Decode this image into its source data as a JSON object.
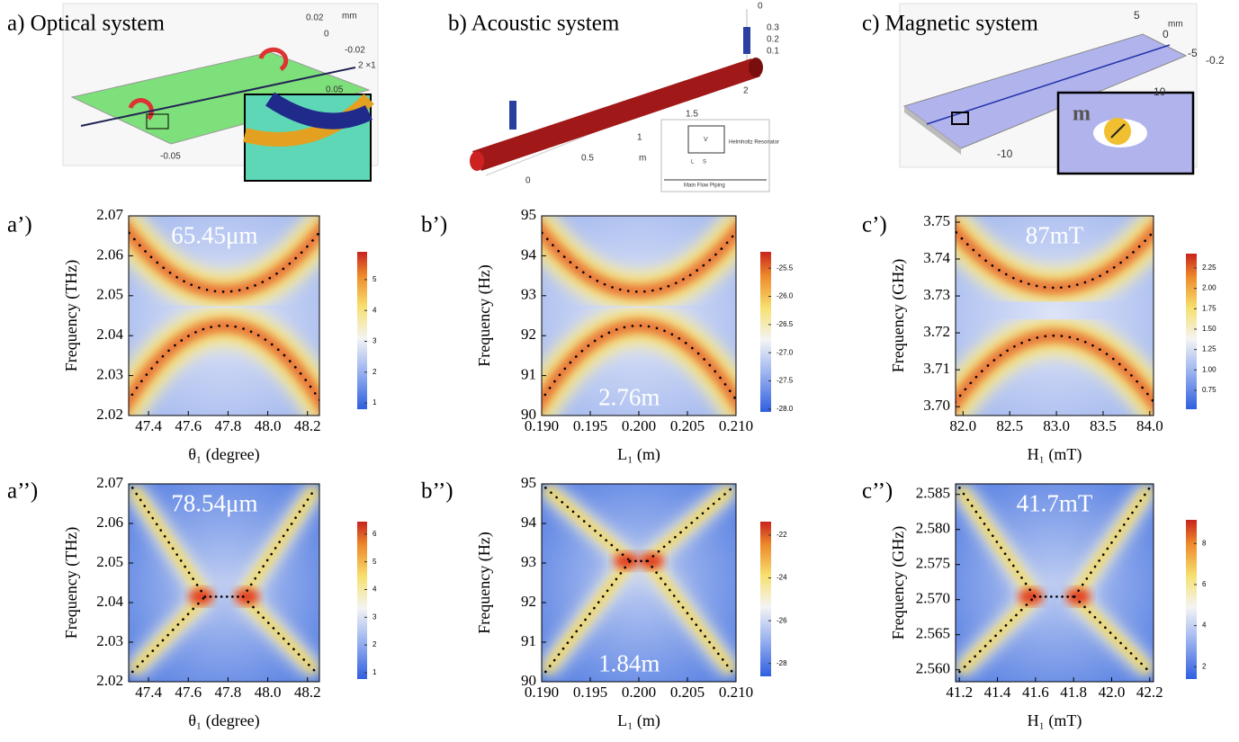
{
  "illustrations": [
    {
      "title": "a) Optical system",
      "labels": [
        "0.02",
        "mm",
        "0",
        "-0.02",
        "2 ×1",
        "0.05",
        "-0.05"
      ]
    },
    {
      "title": "b) Acoustic system",
      "labels": [
        "0",
        "0.3",
        "0.2",
        "0.1",
        "2",
        "1.5",
        "1",
        "0.5",
        "m",
        "0",
        "V",
        "Helmholtz Resonator",
        "L",
        "S",
        "Main Flow Piping"
      ]
    },
    {
      "title": "c) Magnetic system",
      "labels": [
        "5",
        "mm",
        "0",
        "-5",
        "-0.2",
        "10",
        "-10",
        "m"
      ]
    }
  ],
  "chart_data": [
    {
      "type": "heatmap",
      "label": "a’)",
      "annotation": "65.45μm",
      "x_label": "θ₁ (degree)",
      "y_label": "Frequency (THz)",
      "xlim": [
        47.3,
        48.26
      ],
      "ylim": [
        2.02,
        2.07
      ],
      "xticks": [
        47.4,
        47.6,
        47.8,
        {
          "value": 48,
          "label": "48.0"
        },
        48.2
      ],
      "yticks": [
        2.02,
        2.03,
        2.04,
        2.05,
        2.06,
        2.07
      ],
      "colorbar_lim": [
        0.8,
        5.9
      ],
      "colorbar_ticks": [
        1,
        2,
        3,
        4,
        5
      ]
    },
    {
      "type": "heatmap",
      "label": "b’)",
      "annotation": "2.76m",
      "x_label": "L₁ (m)",
      "y_label": "Frequency (Hz)",
      "xlim": [
        0.19,
        0.21
      ],
      "ylim": [
        90,
        95
      ],
      "xticks": [
        {
          "value": 0.19,
          "label": "0.190"
        },
        0.195,
        {
          "value": 0.2,
          "label": "0.200"
        },
        0.205,
        {
          "value": 0.21,
          "label": "0.210"
        }
      ],
      "yticks": [
        90,
        91,
        92,
        93,
        94,
        95
      ],
      "colorbar_lim": [
        -28.05,
        -25.21
      ],
      "colorbar_ticks": [
        {
          "value": -28,
          "label": "-28.0"
        },
        -27.5,
        {
          "value": -27,
          "label": "-27.0"
        },
        -26.5,
        {
          "value": -26,
          "label": "-26.0"
        },
        -25.5
      ]
    },
    {
      "type": "heatmap",
      "label": "c’)",
      "annotation": "87mT",
      "x_label": "H₁ (mT)",
      "y_label": "Frequency (GHz)",
      "xlim": [
        81.92,
        84.04
      ],
      "ylim": [
        3.6976,
        3.7517
      ],
      "xticks": [
        {
          "value": 82,
          "label": "82.0"
        },
        82.5,
        {
          "value": 83,
          "label": "83.0"
        },
        83.5,
        {
          "value": 84,
          "label": "84.0"
        }
      ],
      "yticks": [
        {
          "value": 3.7,
          "label": "3.70"
        },
        3.71,
        3.72,
        3.73,
        3.74,
        3.75
      ],
      "colorbar_lim": [
        0.518,
        2.426
      ],
      "colorbar_ticks": [
        0.75,
        {
          "value": 1,
          "label": "1.00"
        },
        1.25,
        {
          "value": 1.5,
          "label": "1.50"
        },
        1.75,
        {
          "value": 2,
          "label": "2.00"
        },
        2.25
      ]
    },
    {
      "type": "heatmap",
      "label": "a’’)",
      "annotation": "78.54μm",
      "x_label": "θ₁ (degree)",
      "y_label": "Frequency (THz)",
      "xlim": [
        47.3,
        48.26
      ],
      "ylim": [
        2.02,
        2.07
      ],
      "xticks": [
        47.4,
        47.6,
        47.8,
        {
          "value": 48,
          "label": "48.0"
        },
        48.2
      ],
      "yticks": [
        2.02,
        2.03,
        2.04,
        2.05,
        2.06,
        2.07
      ],
      "colorbar_lim": [
        0.77,
        6.45
      ],
      "colorbar_ticks": [
        1,
        2,
        3,
        4,
        5,
        6
      ]
    },
    {
      "type": "heatmap",
      "label": "b’’)",
      "annotation": "1.84m",
      "x_label": "L₁ (m)",
      "y_label": "Frequency (Hz)",
      "xlim": [
        0.19,
        0.21
      ],
      "ylim": [
        90,
        95
      ],
      "xticks": [
        {
          "value": 0.19,
          "label": "0.190"
        },
        0.195,
        {
          "value": 0.2,
          "label": "0.200"
        },
        0.205,
        {
          "value": 0.21,
          "label": "0.210"
        }
      ],
      "yticks": [
        90,
        91,
        92,
        93,
        94,
        95
      ],
      "colorbar_lim": [
        -28.6,
        -21.37
      ],
      "colorbar_ticks": [
        -28,
        -26,
        -24,
        -22
      ]
    },
    {
      "type": "heatmap",
      "label": "c’’)",
      "annotation": "41.7mT",
      "x_label": "H₁ (mT)",
      "y_label": "Frequency (GHz)",
      "xlim": [
        41.18,
        42.22
      ],
      "ylim": [
        2.5583,
        2.5865
      ],
      "xticks": [
        41.2,
        41.4,
        41.6,
        41.8,
        {
          "value": 42,
          "label": "42.0"
        },
        42.2
      ],
      "yticks": [
        {
          "value": 2.56,
          "label": "2.560"
        },
        2.565,
        {
          "value": 2.57,
          "label": "2.570"
        },
        2.575,
        {
          "value": 2.58,
          "label": "2.580"
        },
        2.585
      ],
      "colorbar_lim": [
        1.4,
        9.15
      ],
      "colorbar_ticks": [
        2,
        4,
        6,
        8
      ]
    }
  ]
}
